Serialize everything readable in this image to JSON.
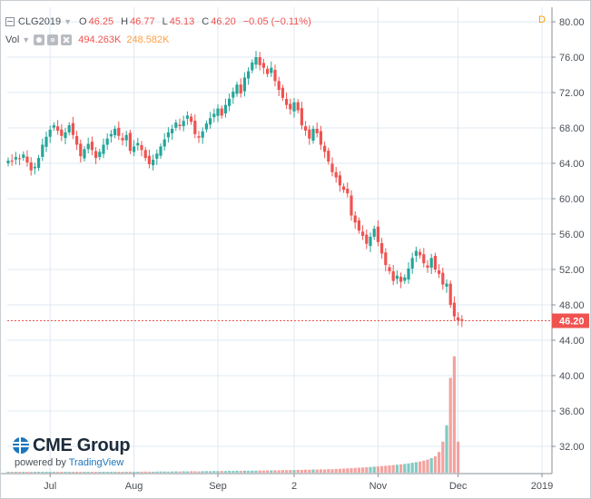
{
  "legend": {
    "symbol": "CLG2019",
    "open_key": "O",
    "open": "46.25",
    "high_key": "H",
    "high": "46.77",
    "low_key": "L",
    "low": "45.13",
    "close_key": "C",
    "close": "46.20",
    "change": "−0.05 (−0.11%)",
    "volume_label": "Vol",
    "volume_a": "494.263K",
    "volume_b": "248.582K",
    "d_flag": "D"
  },
  "branding": {
    "name": "CME Group",
    "powered_by": "powered by",
    "platform": "TradingView"
  },
  "colors": {
    "up": "#26a69a",
    "down": "#ef5350",
    "vol_up": "#80cbc4",
    "vol_down": "#f3a3a0",
    "last_price": "#ef5350",
    "grid": "#dfe8f2",
    "axis_text": "#4a4f56"
  },
  "chart_data": {
    "type": "candlestick",
    "title": "CLG2019",
    "y_axis": {
      "side": "right",
      "min": 28,
      "max": 82,
      "ticks": [
        32,
        36,
        40,
        44,
        48,
        52,
        56,
        60,
        64,
        68,
        72,
        76,
        80
      ]
    },
    "x_axis": {
      "ticks": [
        {
          "label": "Jul",
          "i": 11
        },
        {
          "label": "Aug",
          "i": 33
        },
        {
          "label": "Sep",
          "i": 55
        },
        {
          "label": "2",
          "i": 75
        },
        {
          "label": "Nov",
          "i": 97
        },
        {
          "label": "Dec",
          "i": 118
        },
        {
          "label": "2019",
          "i": 140
        }
      ]
    },
    "last_price": 46.2,
    "closes": [
      64.3,
      64.2,
      64.7,
      64.5,
      65.0,
      64.1,
      63.2,
      63.6,
      64.6,
      66.1,
      67.0,
      67.8,
      68.3,
      67.7,
      67.1,
      67.5,
      68.3,
      67.2,
      66.1,
      64.8,
      65.6,
      66.2,
      65.5,
      64.6,
      65.3,
      66.1,
      66.8,
      67.3,
      67.9,
      67.1,
      66.6,
      67.2,
      65.4,
      65.9,
      66.3,
      65.5,
      64.6,
      63.9,
      64.4,
      65.1,
      65.9,
      66.7,
      67.5,
      67.9,
      68.6,
      68.2,
      68.8,
      69.4,
      68.7,
      67.3,
      66.9,
      67.6,
      68.5,
      69.1,
      69.6,
      70.2,
      69.4,
      70.6,
      71.3,
      72.1,
      72.9,
      71.9,
      73.7,
      74.4,
      75.4,
      76.0,
      75.1,
      74.8,
      74.1,
      74.8,
      73.3,
      72.3,
      71.4,
      70.6,
      70.1,
      70.9,
      70.0,
      68.3,
      67.7,
      66.8,
      67.9,
      67.4,
      66.1,
      65.3,
      64.2,
      63.0,
      62.4,
      61.5,
      61.0,
      60.6,
      58.1,
      57.3,
      56.4,
      55.8,
      54.9,
      55.7,
      56.6,
      55.1,
      53.8,
      52.5,
      51.8,
      50.7,
      51.3,
      50.6,
      51.1,
      52.1,
      53.3,
      54.1,
      53.6,
      52.7,
      52.2,
      53.3,
      52.0,
      51.5,
      50.3,
      50.4,
      48.0,
      46.7,
      46.25,
      46.2
    ],
    "volumes": [
      0.05,
      0.04,
      0.05,
      0.06,
      0.05,
      0.06,
      0.07,
      0.05,
      0.06,
      0.07,
      0.06,
      0.07,
      0.08,
      0.06,
      0.07,
      0.08,
      0.07,
      0.08,
      0.09,
      0.08,
      0.07,
      0.08,
      0.09,
      0.1,
      0.08,
      0.09,
      0.1,
      0.09,
      0.11,
      0.1,
      0.09,
      0.1,
      0.12,
      0.11,
      0.1,
      0.12,
      0.13,
      0.12,
      0.11,
      0.13,
      0.14,
      0.13,
      0.12,
      0.14,
      0.15,
      0.14,
      0.16,
      0.15,
      0.17,
      0.16,
      0.15,
      0.17,
      0.18,
      0.17,
      0.19,
      0.18,
      0.2,
      0.19,
      0.21,
      0.2,
      0.22,
      0.21,
      0.23,
      0.22,
      0.24,
      0.23,
      0.25,
      0.24,
      0.27,
      0.26,
      0.28,
      0.27,
      0.3,
      0.29,
      0.31,
      0.3,
      0.33,
      0.32,
      0.35,
      0.34,
      0.37,
      0.36,
      0.39,
      0.38,
      0.41,
      0.4,
      0.43,
      0.45,
      0.47,
      0.5,
      0.52,
      0.55,
      0.58,
      0.6,
      0.63,
      0.66,
      0.7,
      0.73,
      0.77,
      0.8,
      0.84,
      0.88,
      0.92,
      0.97,
      1.02,
      1.08,
      1.15,
      1.22,
      1.3,
      1.4,
      1.52,
      1.68,
      1.9,
      2.4,
      3.6,
      5.5,
      11.0,
      13.5,
      3.6,
      0.0
    ]
  }
}
